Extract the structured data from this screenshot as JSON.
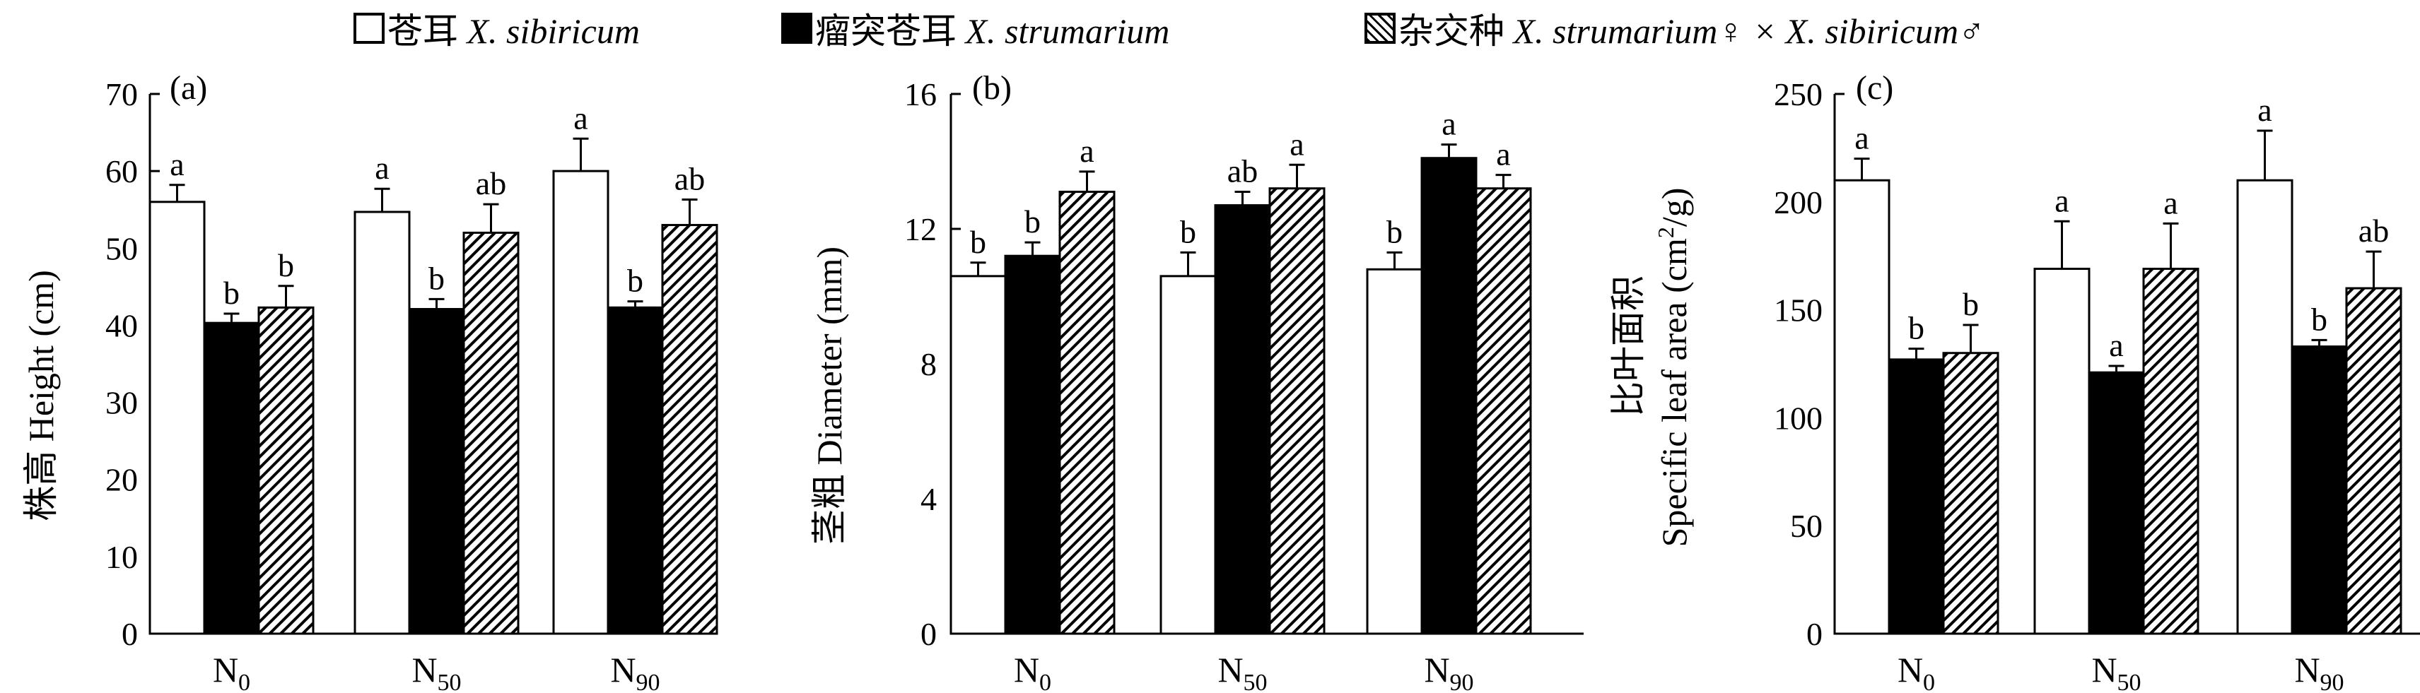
{
  "legend": [
    {
      "cn": "苍耳",
      "sp": "X. sibiricum",
      "pattern": "white"
    },
    {
      "cn": "瘤突苍耳",
      "sp": "X. strumarium",
      "pattern": "black"
    },
    {
      "cn": "杂交种",
      "sp": "X. strumarium♀ × X. sibiricum♂",
      "pattern": "hatch"
    }
  ],
  "chart_data": [
    {
      "type": "bar",
      "panel_label": "(a)",
      "ylabel": "株高 Height (cm)",
      "ylim": [
        0,
        70
      ],
      "yticks": [
        0,
        10,
        20,
        30,
        40,
        50,
        60,
        70
      ],
      "categories": [
        "N0",
        "N50",
        "N90"
      ],
      "category_labels": [
        {
          "base": "N",
          "sub": "0"
        },
        {
          "base": "N",
          "sub": "50"
        },
        {
          "base": "N",
          "sub": "90"
        }
      ],
      "series": [
        {
          "values": [
            56,
            54.7,
            60
          ],
          "errors": [
            2.2,
            3,
            4.2
          ],
          "letters": [
            "a",
            "a",
            "a"
          ]
        },
        {
          "values": [
            40.3,
            42.1,
            42.3
          ],
          "errors": [
            1.2,
            1.3,
            0.8
          ],
          "letters": [
            "b",
            "b",
            "b"
          ]
        },
        {
          "values": [
            42.3,
            52,
            53
          ],
          "errors": [
            2.8,
            3.7,
            3.3
          ],
          "letters": [
            "b",
            "ab",
            "ab"
          ]
        }
      ]
    },
    {
      "type": "bar",
      "panel_label": "(b)",
      "ylabel": "茎粗 Diameter (mm)",
      "ylim": [
        0,
        16
      ],
      "yticks": [
        0,
        4,
        8,
        12,
        16
      ],
      "categories": [
        "N0",
        "N50",
        "N90"
      ],
      "category_labels": [
        {
          "base": "N",
          "sub": "0"
        },
        {
          "base": "N",
          "sub": "50"
        },
        {
          "base": "N",
          "sub": "90"
        }
      ],
      "series": [
        {
          "values": [
            10.6,
            10.6,
            10.8
          ],
          "errors": [
            0.4,
            0.7,
            0.5
          ],
          "letters": [
            "b",
            "b",
            "b"
          ]
        },
        {
          "values": [
            11.2,
            12.7,
            14.1
          ],
          "errors": [
            0.4,
            0.4,
            0.4
          ],
          "letters": [
            "b",
            "ab",
            "a"
          ]
        },
        {
          "values": [
            13.1,
            13.2,
            13.2
          ],
          "errors": [
            0.6,
            0.7,
            0.4
          ],
          "letters": [
            "a",
            "a",
            "a"
          ]
        }
      ]
    },
    {
      "type": "bar",
      "panel_label": "(c)",
      "ylabel_line1": "比叶面积",
      "ylabel_line2_pre": "Specific leaf area (cm",
      "ylabel_line2_sup": "2",
      "ylabel_line2_post": "/g)",
      "ylim": [
        0,
        250
      ],
      "yticks": [
        0,
        50,
        100,
        150,
        200,
        250
      ],
      "categories": [
        "N0",
        "N50",
        "N90"
      ],
      "category_labels": [
        {
          "base": "N",
          "sub": "0"
        },
        {
          "base": "N",
          "sub": "50"
        },
        {
          "base": "N",
          "sub": "90"
        }
      ],
      "series": [
        {
          "values": [
            210,
            169,
            210
          ],
          "errors": [
            10,
            22,
            23
          ],
          "letters": [
            "a",
            "a",
            "a"
          ]
        },
        {
          "values": [
            127,
            121,
            133
          ],
          "errors": [
            5,
            3,
            3
          ],
          "letters": [
            "b",
            "a",
            "b"
          ]
        },
        {
          "values": [
            130,
            169,
            160
          ],
          "errors": [
            13,
            21,
            17
          ],
          "letters": [
            "b",
            "a",
            "ab"
          ]
        }
      ]
    }
  ]
}
